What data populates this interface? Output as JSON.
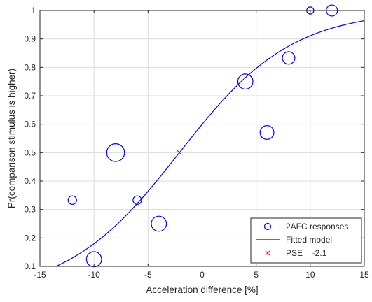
{
  "chart_data": {
    "type": "scatter",
    "xlabel": "Acceleration difference [%]",
    "ylabel": "Pr(comparison stimulus is higher)",
    "xlim": [
      -15,
      15
    ],
    "ylim": [
      0.1,
      1
    ],
    "xticks": [
      "-15",
      "-10",
      "-5",
      "0",
      "5",
      "10",
      "15"
    ],
    "yticks": [
      "0.1",
      "0.2",
      "0.3",
      "0.4",
      "0.5",
      "0.6",
      "0.7",
      "0.8",
      "0.9",
      "1"
    ],
    "grid": true,
    "legend_position": "bottom-right",
    "colors": {
      "series": "#0000ff",
      "pse": "#ff0000"
    },
    "series": [
      {
        "name": "2AFC responses",
        "kind": "marker-circle",
        "points": [
          {
            "x": -12,
            "y": 0.333,
            "n": 3
          },
          {
            "x": -10,
            "y": 0.125,
            "n": 8
          },
          {
            "x": -8,
            "y": 0.5,
            "n": 10
          },
          {
            "x": -6,
            "y": 0.333,
            "n": 3
          },
          {
            "x": -4,
            "y": 0.25,
            "n": 8
          },
          {
            "x": 4,
            "y": 0.75,
            "n": 8
          },
          {
            "x": 6,
            "y": 0.571,
            "n": 7
          },
          {
            "x": 8,
            "y": 0.833,
            "n": 6
          },
          {
            "x": 10,
            "y": 1.0,
            "n": 2
          },
          {
            "x": 12,
            "y": 1.0,
            "n": 5
          }
        ]
      },
      {
        "name": "Fitted model",
        "kind": "line",
        "x": [
          -15,
          -14,
          -13,
          -12,
          -11,
          -10,
          -9,
          -8,
          -7,
          -6,
          -5,
          -4,
          -3,
          -2,
          -1,
          0,
          1,
          2,
          3,
          4,
          5,
          6,
          7,
          8,
          9,
          10,
          11,
          12,
          13,
          14,
          15
        ],
        "y": [
          0.148,
          0.166,
          0.186,
          0.208,
          0.232,
          0.258,
          0.286,
          0.316,
          0.348,
          0.382,
          0.418,
          0.455,
          0.493,
          0.531,
          0.569,
          0.607,
          0.644,
          0.68,
          0.714,
          0.746,
          0.776,
          0.804,
          0.829,
          0.852,
          0.872,
          0.89,
          0.906,
          0.92,
          0.932,
          0.942,
          0.91
        ]
      },
      {
        "name": "PSE = -2.1",
        "kind": "marker-x",
        "points": [
          {
            "x": -2.1,
            "y": 0.5
          }
        ]
      }
    ]
  }
}
